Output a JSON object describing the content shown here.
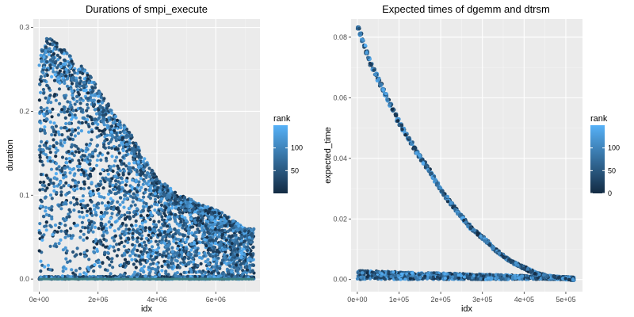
{
  "chart_data": [
    {
      "type": "scatter",
      "title": "Durations of smpi_execute",
      "xlabel": "idx",
      "ylabel": "duration",
      "xlim": [
        -200000,
        7500000
      ],
      "ylim": [
        -0.015,
        0.31
      ],
      "x_ticks": [
        0,
        2000000,
        4000000,
        6000000
      ],
      "x_tick_labels": [
        "0e+00",
        "2e+06",
        "4e+06",
        "6e+06"
      ],
      "y_ticks": [
        0.0,
        0.1,
        0.2,
        0.3
      ],
      "y_tick_labels": [
        "0.0",
        "0.1",
        "0.2",
        "0.3"
      ],
      "grid": true,
      "legend": {
        "title": "rank",
        "position": "right",
        "range": [
          0,
          150
        ],
        "ticks": [
          50,
          100
        ],
        "tick_labels": [
          "50",
          "100"
        ],
        "colors": [
          "#132b43",
          "#56b1f7"
        ]
      },
      "series": [
        {
          "envelope_x": [
            0,
            300000,
            800000,
            1300000,
            1800000,
            2500000,
            3000000,
            3500000,
            4000000,
            4800000,
            5500000,
            6200000,
            7000000,
            7300000
          ],
          "envelope_y": [
            0.27,
            0.29,
            0.275,
            0.26,
            0.24,
            0.2,
            0.18,
            0.15,
            0.12,
            0.1,
            0.09,
            0.08,
            0.06,
            0.06
          ],
          "baseline_y": 0.0,
          "color_encodes": "rank"
        }
      ]
    },
    {
      "type": "scatter",
      "title": "Expected times of dgemm and dtrsm",
      "xlabel": "idx",
      "ylabel": "expected_time",
      "xlim": [
        -15000,
        540000
      ],
      "ylim": [
        -0.004,
        0.086
      ],
      "x_ticks": [
        0,
        100000,
        200000,
        300000,
        400000,
        500000
      ],
      "x_tick_labels": [
        "0e+00",
        "1e+05",
        "2e+05",
        "3e+05",
        "4e+05",
        "5e+05"
      ],
      "y_ticks": [
        0.0,
        0.02,
        0.04,
        0.06,
        0.08
      ],
      "y_tick_labels": [
        "0.00",
        "0.02",
        "0.04",
        "0.06",
        "0.08"
      ],
      "grid": true,
      "legend": {
        "title": "rank",
        "position": "right",
        "range": [
          0,
          150
        ],
        "ticks": [
          0,
          50,
          100
        ],
        "tick_labels": [
          "0",
          "50",
          "100"
        ],
        "colors": [
          "#132b43",
          "#56b1f7"
        ]
      },
      "series": [
        {
          "name": "",
          "staircase_x": [
            0,
            30000,
            65000,
            100000,
            140000,
            175000,
            205000,
            240000,
            270000,
            305000,
            335000,
            365000,
            395000,
            425000,
            455000,
            490000,
            520000
          ],
          "staircase_y": [
            0.083,
            0.071,
            0.061,
            0.051,
            0.042,
            0.035,
            0.028,
            0.022,
            0.017,
            0.013,
            0.009,
            0.006,
            0.004,
            0.002,
            0.001,
            0.0005,
            0.0
          ],
          "low_band_y": [
            0.0,
            0.003
          ],
          "color_encodes": "rank"
        }
      ]
    }
  ]
}
